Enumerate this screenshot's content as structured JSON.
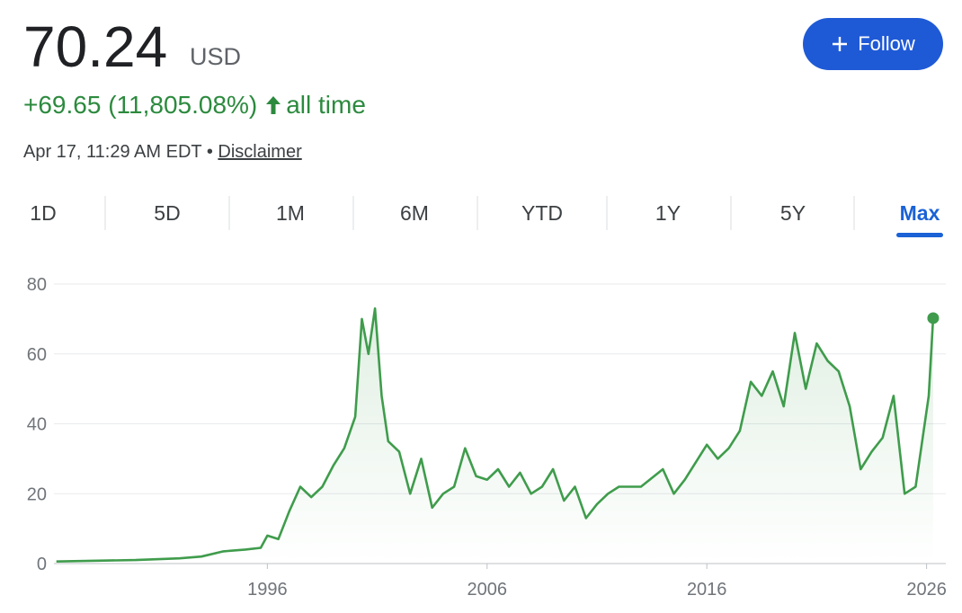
{
  "header": {
    "price": "70.24",
    "currency": "USD",
    "change": "+69.65 (11,805.08%)",
    "period": "all time",
    "timestamp": "Apr 17, 11:29 AM EDT",
    "separator": "•",
    "disclaimer": "Disclaimer",
    "follow": "Follow"
  },
  "tabs": {
    "items": [
      "1D",
      "5D",
      "1M",
      "6M",
      "YTD",
      "1Y",
      "5Y",
      "Max"
    ],
    "active": 7
  },
  "chart_data": {
    "type": "line",
    "area": true,
    "x": [
      1986.4,
      1988,
      1990,
      1992,
      1993,
      1994,
      1995,
      1995.7,
      1996,
      1996.5,
      1997,
      1997.5,
      1998,
      1998.5,
      1999,
      1999.5,
      2000,
      2000.3,
      2000.6,
      2000.9,
      2001.2,
      2001.5,
      2002,
      2002.5,
      2003,
      2003.5,
      2004,
      2004.5,
      2005,
      2005.5,
      2006,
      2006.5,
      2007,
      2007.5,
      2008,
      2008.5,
      2009,
      2009.5,
      2010,
      2010.5,
      2011,
      2011.5,
      2012,
      2013,
      2014,
      2014.5,
      2015,
      2016,
      2016.5,
      2017,
      2017.5,
      2018,
      2018.5,
      2019,
      2019.5,
      2020,
      2020.5,
      2021,
      2021.5,
      2022,
      2022.5,
      2023,
      2023.5,
      2024,
      2024.5,
      2025,
      2025.5,
      2025.8,
      2026.1,
      2026.3
    ],
    "series": [
      {
        "color": "#3f9c4c",
        "values": [
          0.6,
          0.8,
          1.0,
          1.5,
          2,
          3.5,
          4,
          4.5,
          8,
          7,
          15,
          22,
          19,
          22,
          28,
          33,
          42,
          70,
          60,
          73,
          48,
          35,
          32,
          20,
          30,
          16,
          20,
          22,
          33,
          25,
          24,
          27,
          22,
          26,
          20,
          22,
          27,
          18,
          22,
          13,
          17,
          20,
          22,
          22,
          27,
          20,
          24,
          34,
          30,
          33,
          38,
          52,
          48,
          55,
          45,
          66,
          50,
          63,
          58,
          55,
          45,
          27,
          32,
          36,
          48,
          20,
          22,
          35,
          48,
          70.24
        ]
      }
    ],
    "xlim": [
      1985.2,
      2026.9
    ],
    "xticks": [
      1996,
      2006,
      2016,
      2026
    ],
    "ylim": [
      0,
      80
    ],
    "yticks": [
      0,
      20,
      40,
      60,
      80
    ],
    "grid": true
  }
}
